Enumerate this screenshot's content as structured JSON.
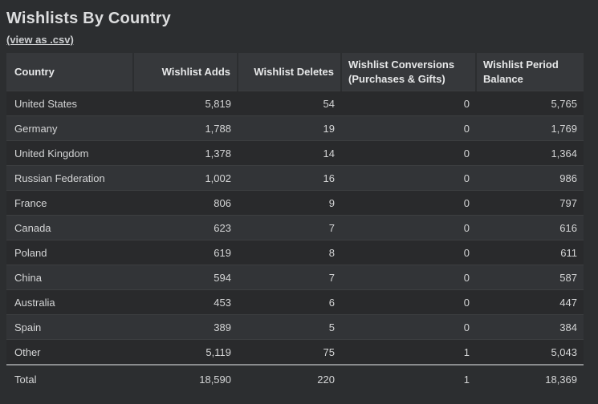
{
  "colors": {
    "page_bg": "#2c2e30",
    "header_bg": "#36383b",
    "row_odd_bg": "#292a2c",
    "row_even_bg": "#323437",
    "row_divider": "#3c3e40",
    "total_divider": "#8a8c8e",
    "title_text": "#dcddde",
    "body_text": "#d4d5d6"
  },
  "header": {
    "title": "Wishlists By Country",
    "csv_link_label": "(view as .csv)"
  },
  "table": {
    "columns": [
      {
        "key": "country",
        "label": "Country"
      },
      {
        "key": "adds",
        "label": "Wishlist Adds"
      },
      {
        "key": "deletes",
        "label": "Wishlist Deletes"
      },
      {
        "key": "conversions",
        "label": "Wishlist Conversions (Purchases & Gifts)"
      },
      {
        "key": "balance",
        "label": "Wishlist Period Balance"
      }
    ],
    "rows": [
      {
        "country": "United States",
        "adds": "5,819",
        "deletes": "54",
        "conversions": "0",
        "balance": "5,765"
      },
      {
        "country": "Germany",
        "adds": "1,788",
        "deletes": "19",
        "conversions": "0",
        "balance": "1,769"
      },
      {
        "country": "United Kingdom",
        "adds": "1,378",
        "deletes": "14",
        "conversions": "0",
        "balance": "1,364"
      },
      {
        "country": "Russian Federation",
        "adds": "1,002",
        "deletes": "16",
        "conversions": "0",
        "balance": "986"
      },
      {
        "country": "France",
        "adds": "806",
        "deletes": "9",
        "conversions": "0",
        "balance": "797"
      },
      {
        "country": "Canada",
        "adds": "623",
        "deletes": "7",
        "conversions": "0",
        "balance": "616"
      },
      {
        "country": "Poland",
        "adds": "619",
        "deletes": "8",
        "conversions": "0",
        "balance": "611"
      },
      {
        "country": "China",
        "adds": "594",
        "deletes": "7",
        "conversions": "0",
        "balance": "587"
      },
      {
        "country": "Australia",
        "adds": "453",
        "deletes": "6",
        "conversions": "0",
        "balance": "447"
      },
      {
        "country": "Spain",
        "adds": "389",
        "deletes": "5",
        "conversions": "0",
        "balance": "384"
      },
      {
        "country": "Other",
        "adds": "5,119",
        "deletes": "75",
        "conversions": "1",
        "balance": "5,043"
      }
    ],
    "total": {
      "country": "Total",
      "adds": "18,590",
      "deletes": "220",
      "conversions": "1",
      "balance": "18,369"
    }
  }
}
